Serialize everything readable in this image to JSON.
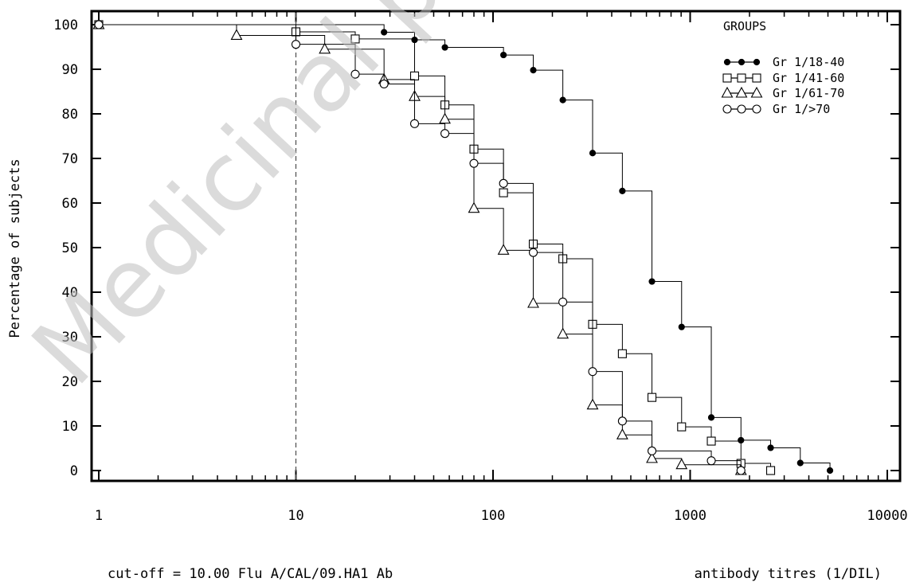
{
  "chart_data": {
    "type": "line",
    "step": "reverse-cumulative",
    "watermark": "Medicinal product",
    "ylabel": "Percentage of subjects",
    "xlabel": "antibody titres (1/DIL)",
    "footer_left": "cut-off = 10.00 Flu A/CAL/09.HA1 Ab",
    "x_scale": "log",
    "xlim": [
      1,
      10000
    ],
    "ylim": [
      0,
      100
    ],
    "x_ticks": [
      1,
      10,
      100,
      1000,
      10000
    ],
    "x_tick_labels": [
      "1",
      "10",
      "100",
      "1000",
      "10000"
    ],
    "y_ticks": [
      0,
      10,
      20,
      30,
      40,
      50,
      60,
      70,
      80,
      90,
      100
    ],
    "y_tick_labels": [
      "0",
      "10",
      "20",
      "30",
      "40",
      "50",
      "60",
      "70",
      "80",
      "90",
      "100"
    ],
    "cutoff_x": 10,
    "grid": false,
    "legend_title": "GROUPS",
    "legend_position": "top-right",
    "series": [
      {
        "name": "Gr 1/18-40",
        "marker": "filled-circle",
        "x": [
          1,
          28,
          40,
          57,
          113,
          160,
          226,
          320,
          453,
          640,
          905,
          1280,
          1810,
          2560,
          3620,
          5120
        ],
        "y": [
          100,
          98.3,
          96.6,
          94.9,
          93.2,
          89.8,
          83.1,
          71.2,
          62.7,
          42.4,
          32.2,
          11.9,
          6.8,
          5.1,
          1.7,
          0
        ]
      },
      {
        "name": "Gr 1/41-60",
        "marker": "open-square",
        "x": [
          1,
          10,
          20,
          40,
          57,
          80,
          113,
          160,
          226,
          320,
          453,
          640,
          905,
          1280,
          1810,
          2560
        ],
        "y": [
          100,
          98.4,
          96.8,
          88.5,
          82.0,
          72.1,
          62.3,
          50.8,
          47.5,
          32.8,
          26.2,
          16.4,
          9.8,
          6.6,
          1.6,
          0
        ]
      },
      {
        "name": "Gr 1/61-70",
        "marker": "open-triangle",
        "x": [
          1,
          5,
          14,
          28,
          40,
          57,
          80,
          113,
          160,
          226,
          320,
          453,
          640,
          905,
          1810
        ],
        "y": [
          100,
          97.6,
          94.5,
          87.7,
          83.9,
          78.8,
          58.8,
          49.4,
          37.5,
          30.6,
          14.7,
          8.0,
          2.7,
          1.3,
          0
        ]
      },
      {
        "name": "Gr 1/>70",
        "marker": "open-circle",
        "x": [
          1,
          10,
          20,
          28,
          40,
          57,
          80,
          113,
          160,
          226,
          320,
          453,
          640,
          1280,
          1810
        ],
        "y": [
          100,
          95.6,
          88.9,
          86.7,
          77.8,
          75.6,
          68.9,
          64.4,
          48.9,
          37.8,
          22.2,
          11.1,
          4.4,
          2.2,
          0
        ]
      }
    ]
  }
}
